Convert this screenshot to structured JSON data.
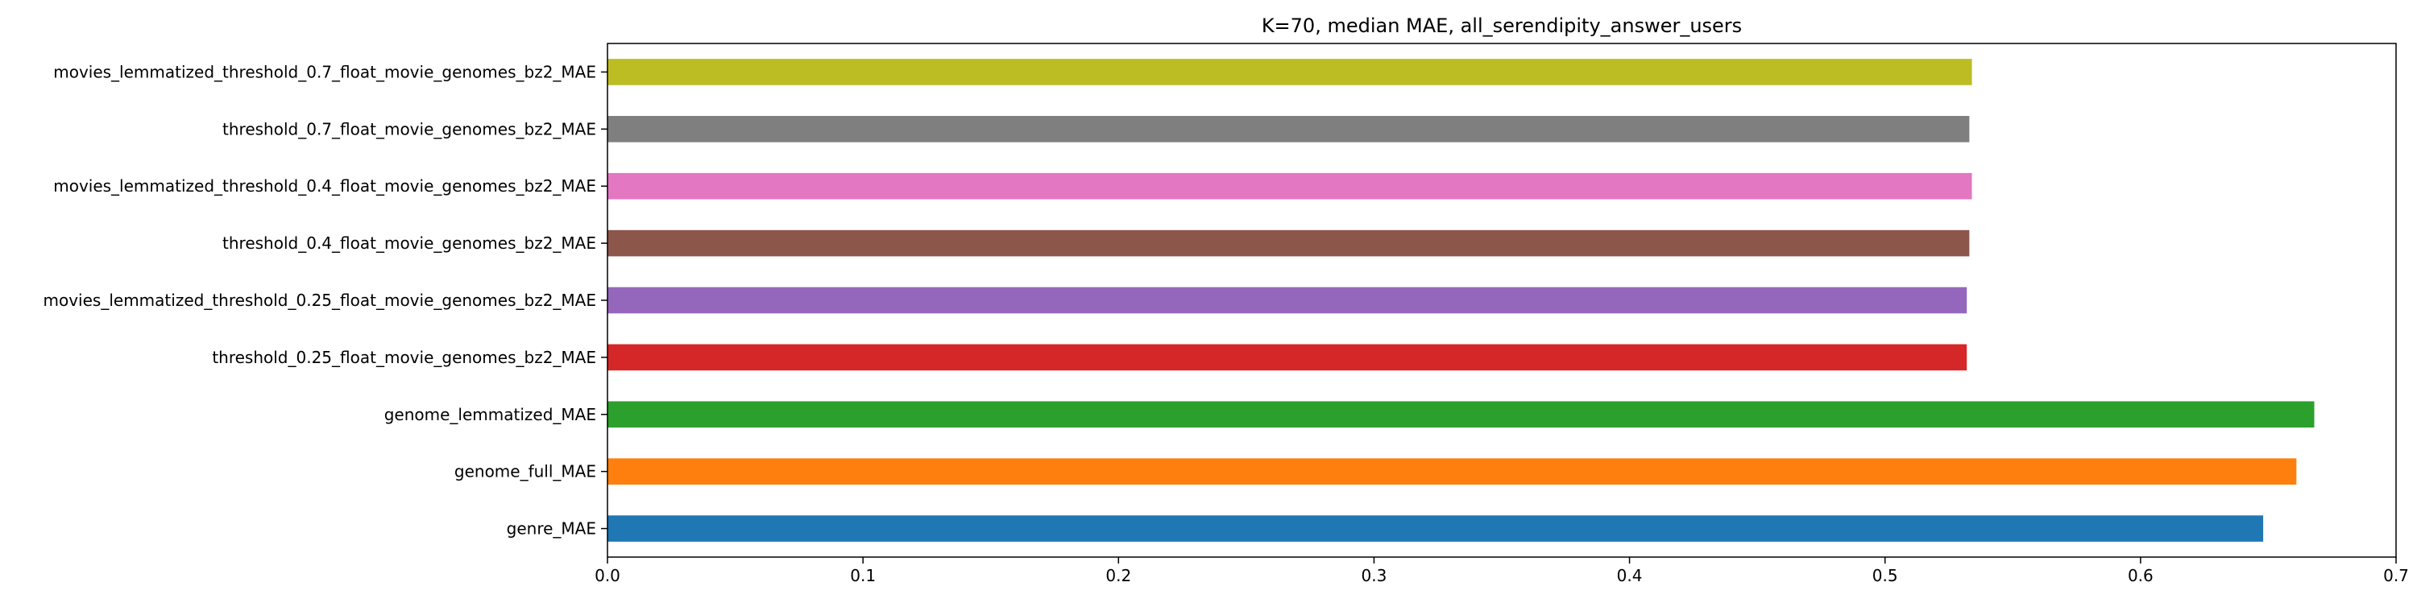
{
  "chart_data": {
    "type": "bar",
    "orientation": "horizontal",
    "title": "K=70, median MAE, all_serendipity_answer_users",
    "xlabel": "",
    "ylabel": "",
    "xlim": [
      0,
      0.7
    ],
    "xticks": [
      0.0,
      0.1,
      0.2,
      0.3,
      0.4,
      0.5,
      0.6,
      0.7
    ],
    "xtick_labels": [
      "0.0",
      "0.1",
      "0.2",
      "0.3",
      "0.4",
      "0.5",
      "0.6",
      "0.7"
    ],
    "grid": false,
    "categories": [
      "genre_MAE",
      "genome_full_MAE",
      "genome_lemmatized_MAE",
      "threshold_0.25_float_movie_genomes_bz2_MAE",
      "movies_lemmatized_threshold_0.25_float_movie_genomes_bz2_MAE",
      "threshold_0.4_float_movie_genomes_bz2_MAE",
      "movies_lemmatized_threshold_0.4_float_movie_genomes_bz2_MAE",
      "threshold_0.7_float_movie_genomes_bz2_MAE",
      "movies_lemmatized_threshold_0.7_float_movie_genomes_bz2_MAE"
    ],
    "values": [
      0.648,
      0.661,
      0.668,
      0.532,
      0.532,
      0.533,
      0.534,
      0.533,
      0.534
    ],
    "colors": [
      "#1f77b4",
      "#ff7f0e",
      "#2ca02c",
      "#d62728",
      "#9467bd",
      "#8c564b",
      "#e377c2",
      "#7f7f7f",
      "#bcbd22"
    ]
  }
}
